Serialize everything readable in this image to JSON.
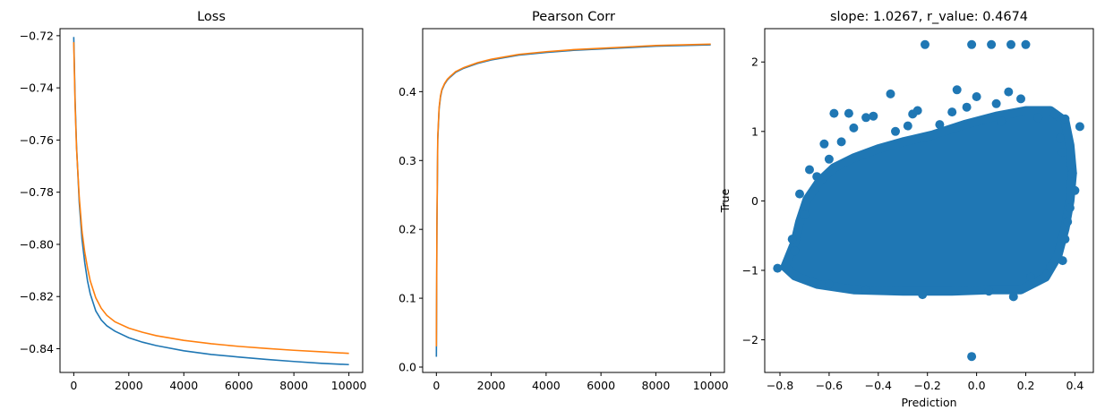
{
  "chart_data": [
    {
      "type": "line",
      "title": "Loss",
      "xlabel": "",
      "ylabel": "",
      "xlim": [
        -500,
        10500
      ],
      "ylim": [
        -0.8491,
        -0.7173
      ],
      "xticks": [
        0,
        2000,
        4000,
        6000,
        8000,
        10000
      ],
      "xtick_labels": [
        "0",
        "2000",
        "4000",
        "6000",
        "8000",
        "10000"
      ],
      "yticks": [
        -0.72,
        -0.74,
        -0.76,
        -0.78,
        -0.8,
        -0.82,
        -0.84
      ],
      "ytick_labels": [
        "−0.72",
        "−0.74",
        "−0.76",
        "−0.78",
        "−0.80",
        "−0.82",
        "−0.84"
      ],
      "grid": false,
      "series": [
        {
          "color": "#1f77b4",
          "x": [
            0,
            50,
            100,
            200,
            300,
            400,
            500,
            600,
            800,
            1000,
            1200,
            1500,
            2000,
            2500,
            3000,
            4000,
            5000,
            6000,
            7000,
            8000,
            9000,
            10000
          ],
          "y": [
            -0.7205,
            -0.745,
            -0.762,
            -0.784,
            -0.798,
            -0.807,
            -0.814,
            -0.819,
            -0.8255,
            -0.829,
            -0.8312,
            -0.8333,
            -0.8358,
            -0.8375,
            -0.8388,
            -0.8408,
            -0.8422,
            -0.8432,
            -0.8441,
            -0.8449,
            -0.8456,
            -0.8461
          ]
        },
        {
          "color": "#ff7f0e",
          "x": [
            0,
            50,
            100,
            200,
            300,
            400,
            500,
            600,
            800,
            1000,
            1200,
            1500,
            2000,
            2500,
            3000,
            4000,
            5000,
            6000,
            7000,
            8000,
            9000,
            10000
          ],
          "y": [
            -0.7225,
            -0.747,
            -0.763,
            -0.782,
            -0.795,
            -0.803,
            -0.809,
            -0.814,
            -0.8205,
            -0.8245,
            -0.8272,
            -0.8297,
            -0.8321,
            -0.8337,
            -0.835,
            -0.8368,
            -0.8381,
            -0.8391,
            -0.8399,
            -0.8406,
            -0.8412,
            -0.8418
          ]
        }
      ]
    },
    {
      "type": "line",
      "title": "Pearson Corr",
      "xlabel": "",
      "ylabel": "",
      "xlim": [
        -500,
        10500
      ],
      "ylim": [
        -0.0078,
        0.4915
      ],
      "xticks": [
        0,
        2000,
        4000,
        6000,
        8000,
        10000
      ],
      "xtick_labels": [
        "0",
        "2000",
        "4000",
        "6000",
        "8000",
        "10000"
      ],
      "yticks": [
        0.0,
        0.1,
        0.2,
        0.3,
        0.4
      ],
      "ytick_labels": [
        "0.0",
        "0.1",
        "0.2",
        "0.3",
        "0.4"
      ],
      "grid": false,
      "series": [
        {
          "color": "#1f77b4",
          "x": [
            0,
            20,
            50,
            100,
            150,
            200,
            300,
            400,
            500,
            700,
            1000,
            1500,
            2000,
            3000,
            4000,
            5000,
            6000,
            7000,
            8000,
            9000,
            10000
          ],
          "y": [
            0.015,
            0.2,
            0.33,
            0.375,
            0.392,
            0.402,
            0.411,
            0.417,
            0.421,
            0.428,
            0.434,
            0.441,
            0.446,
            0.453,
            0.457,
            0.46,
            0.462,
            0.464,
            0.466,
            0.467,
            0.468
          ]
        },
        {
          "color": "#ff7f0e",
          "x": [
            0,
            20,
            50,
            100,
            150,
            200,
            300,
            400,
            500,
            700,
            1000,
            1500,
            2000,
            3000,
            4000,
            5000,
            6000,
            7000,
            8000,
            9000,
            10000
          ],
          "y": [
            0.03,
            0.21,
            0.335,
            0.377,
            0.394,
            0.403,
            0.412,
            0.418,
            0.422,
            0.429,
            0.435,
            0.442,
            0.447,
            0.454,
            0.458,
            0.461,
            0.463,
            0.465,
            0.467,
            0.468,
            0.469
          ]
        }
      ]
    },
    {
      "type": "scatter",
      "title": "slope: 1.0267, r_value: 0.4674",
      "xlabel": "Prediction",
      "ylabel": "True",
      "xlim": [
        -0.862,
        0.475
      ],
      "ylim": [
        -2.47,
        2.48
      ],
      "xticks": [
        -0.8,
        -0.6,
        -0.4,
        -0.2,
        0.0,
        0.2,
        0.4
      ],
      "xtick_labels": [
        "−0.8",
        "−0.6",
        "−0.4",
        "−0.2",
        "0.0",
        "0.2",
        "0.4"
      ],
      "yticks": [
        2,
        1,
        0,
        -1,
        -2
      ],
      "ytick_labels": [
        "2",
        "1",
        "0",
        "−1",
        "−2"
      ],
      "grid": false,
      "color": "#1f77b4",
      "points": [
        [
          -0.81,
          -0.97
        ],
        [
          -0.21,
          2.25
        ],
        [
          -0.02,
          2.25
        ],
        [
          0.06,
          2.25
        ],
        [
          0.14,
          2.25
        ],
        [
          0.2,
          2.25
        ],
        [
          -0.02,
          -2.24
        ],
        [
          -0.35,
          1.54
        ],
        [
          -0.08,
          1.6
        ],
        [
          0.0,
          1.5
        ],
        [
          0.13,
          1.57
        ],
        [
          0.18,
          1.47
        ],
        [
          -0.58,
          1.26
        ],
        [
          -0.52,
          1.26
        ],
        [
          -0.45,
          1.2
        ],
        [
          -0.42,
          1.22
        ],
        [
          -0.26,
          1.25
        ],
        [
          0.42,
          1.07
        ],
        [
          -0.28,
          1.08
        ],
        [
          -0.55,
          0.85
        ],
        [
          -0.6,
          0.6
        ],
        [
          -0.65,
          0.35
        ],
        [
          -0.72,
          0.1
        ],
        [
          -0.7,
          -0.2
        ],
        [
          -0.75,
          -0.55
        ],
        [
          -0.74,
          -0.72
        ],
        [
          0.39,
          0.4
        ],
        [
          0.4,
          0.15
        ],
        [
          0.38,
          -0.1
        ],
        [
          0.37,
          -0.3
        ],
        [
          0.36,
          -0.55
        ],
        [
          0.35,
          -0.86
        ],
        [
          0.3,
          -0.95
        ],
        [
          -0.6,
          -1.2
        ],
        [
          -0.45,
          -1.28
        ],
        [
          -0.22,
          -1.35
        ],
        [
          0.05,
          -1.3
        ],
        [
          0.15,
          -1.38
        ],
        [
          0.22,
          -1.1
        ],
        [
          -0.5,
          1.05
        ],
        [
          -0.33,
          1.0
        ],
        [
          -0.15,
          1.1
        ],
        [
          0.1,
          1.15
        ],
        [
          0.25,
          1.2
        ],
        [
          0.32,
          1.25
        ],
        [
          0.36,
          1.18
        ],
        [
          -0.62,
          0.82
        ],
        [
          -0.68,
          0.45
        ],
        [
          0.34,
          0.9
        ],
        [
          0.35,
          0.7
        ],
        [
          -0.04,
          1.35
        ],
        [
          0.08,
          1.4
        ],
        [
          -0.1,
          1.28
        ],
        [
          -0.24,
          1.3
        ]
      ]
    }
  ]
}
